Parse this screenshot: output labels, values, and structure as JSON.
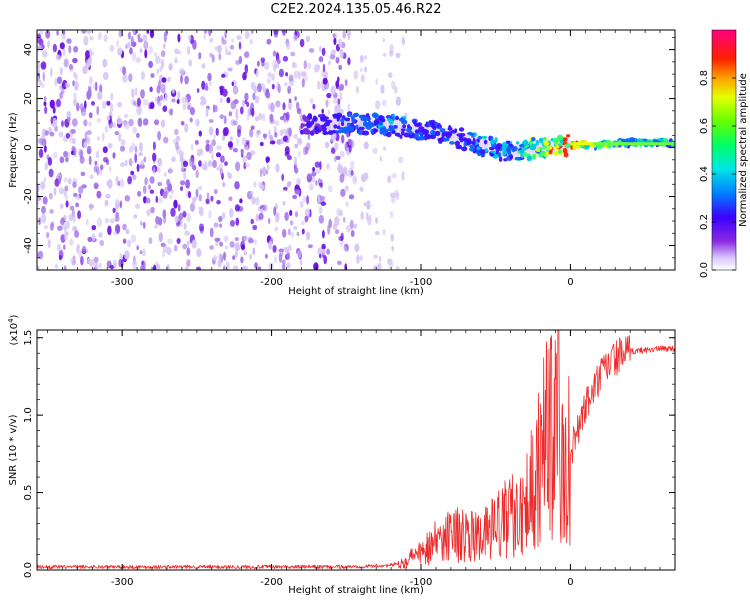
{
  "title": "C2E2.2024.135.05.46.R22",
  "colors": {
    "scatter_light": "#d6c6f5",
    "scatter_mid": "#a679e8",
    "scatter_dark": "#6a0fe0",
    "snr_line": "#ee2a2a"
  },
  "chart_data": [
    {
      "type": "heatmap",
      "title": "C2E2.2024.135.05.46.R22",
      "xlabel": "Height of straight line (km)",
      "ylabel": "Frequency (Hz)",
      "xlim": [
        -357,
        70
      ],
      "ylim": [
        -50,
        48
      ],
      "xticks": [
        -300,
        -200,
        -100,
        0
      ],
      "xtick_labels": [
        "-300",
        "-200",
        "-100",
        "0"
      ],
      "yticks": [
        -40,
        -20,
        0,
        20,
        40
      ],
      "ytick_labels": [
        "-40",
        "-20",
        "0",
        "20",
        "40"
      ],
      "colorbar": {
        "label": "Normalized spectral amplitude",
        "range": [
          0,
          1
        ],
        "ticks": [
          0.0,
          0.2,
          0.4,
          0.6,
          0.8
        ],
        "tick_labels": [
          "0.0",
          "0.2",
          "0.4",
          "0.6",
          "0.8"
        ]
      },
      "ridge": {
        "x": [
          -180,
          -150,
          -120,
          -100,
          -80,
          -60,
          -40,
          -20,
          0,
          20,
          40,
          70
        ],
        "frequency": [
          9,
          10,
          9,
          7,
          5,
          1,
          -2,
          0,
          1,
          1,
          2,
          2
        ],
        "amplitude": [
          0.12,
          0.3,
          0.35,
          0.3,
          0.3,
          0.35,
          0.4,
          0.6,
          0.95,
          0.6,
          0.5,
          0.5
        ]
      },
      "noise_region_x": [
        -357,
        -120
      ]
    },
    {
      "type": "line",
      "xlabel": "Height of straight line (km)",
      "ylabel": "SNR (10 * v/v)",
      "y_multiplier": "(x10",
      "y_multiplier_exp": "4",
      "y_multiplier_close": ")",
      "xlim": [
        -357,
        70
      ],
      "ylim": [
        0,
        1.55
      ],
      "xticks": [
        -300,
        -200,
        -100,
        0
      ],
      "xtick_labels": [
        "-300",
        "-200",
        "-100",
        "0"
      ],
      "yticks": [
        0.0,
        0.5,
        1.0,
        1.5
      ],
      "ytick_labels": [
        "0.0",
        "0.5",
        "1.0",
        "1.5"
      ],
      "series": [
        {
          "name": "SNR",
          "x": [
            -357,
            -300,
            -250,
            -200,
            -150,
            -120,
            -110,
            -100,
            -90,
            -80,
            -70,
            -60,
            -50,
            -40,
            -30,
            -25,
            -20,
            -15,
            -10,
            -8,
            -5,
            0,
            5,
            10,
            15,
            20,
            25,
            30,
            40,
            50,
            60,
            70
          ],
          "values": [
            0.02,
            0.02,
            0.02,
            0.02,
            0.02,
            0.03,
            0.06,
            0.12,
            0.18,
            0.25,
            0.22,
            0.2,
            0.28,
            0.35,
            0.45,
            0.55,
            0.75,
            0.85,
            0.9,
            1.55,
            0.5,
            0.75,
            0.9,
            1.05,
            1.15,
            1.25,
            1.32,
            1.37,
            1.41,
            1.42,
            1.43,
            1.43
          ]
        }
      ]
    }
  ]
}
